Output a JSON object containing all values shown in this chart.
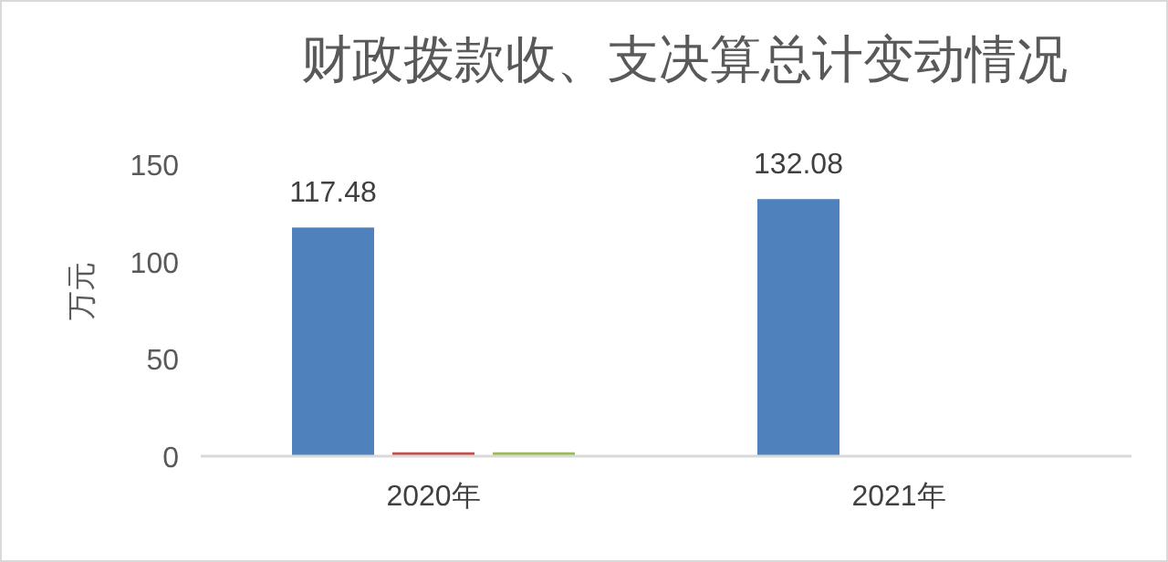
{
  "chart_data": {
    "type": "bar",
    "title": "财政拨款收、支决算总计变动情况",
    "ylabel": "万元",
    "categories": [
      "2020年",
      "2021年"
    ],
    "series": [
      {
        "color": "#4f81bd",
        "values": [
          117.48,
          132.08
        ],
        "value_labels": [
          "117.48",
          "132.08"
        ]
      },
      {
        "color": "#c0504d",
        "values": [
          2,
          null
        ]
      },
      {
        "color": "#9bbb59",
        "values": [
          2,
          null
        ]
      }
    ],
    "ylim": [
      0,
      150
    ],
    "yticks": [
      0,
      50,
      100,
      150
    ],
    "grid": false
  }
}
